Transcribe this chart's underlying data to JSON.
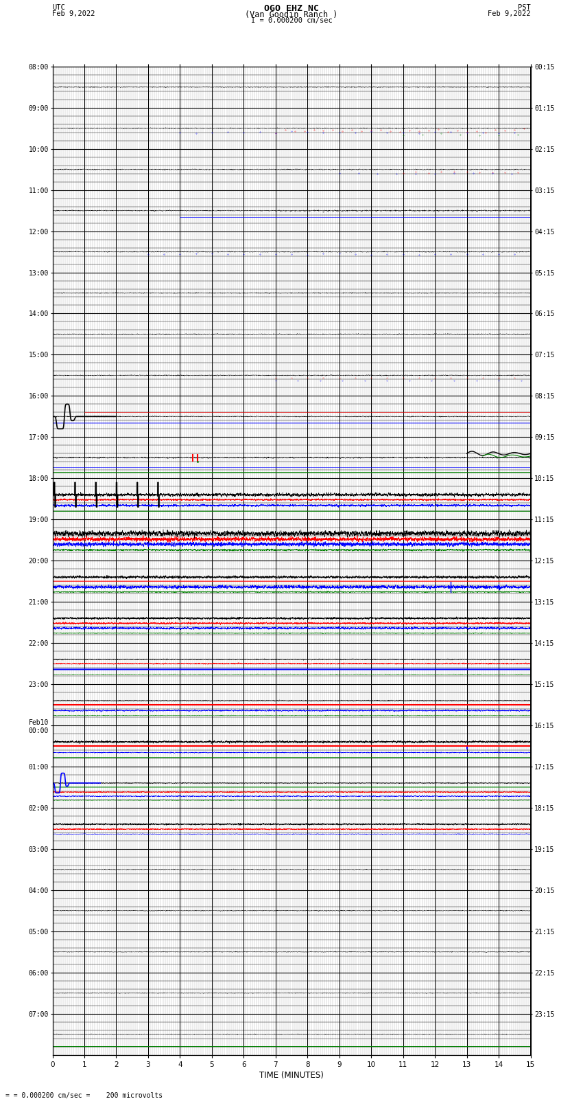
{
  "title_line1": "OGO EHZ NC",
  "title_line2": "(Van Goodin Ranch )",
  "title_line3": "I = 0.000200 cm/sec",
  "left_header_line1": "UTC",
  "left_header_line2": "Feb 9,2022",
  "right_header_line1": "PST",
  "right_header_line2": "Feb 9,2022",
  "xlabel": "TIME (MINUTES)",
  "footer": "= 0.000200 cm/sec =    200 microvolts",
  "xlim": [
    0,
    15
  ],
  "xticks": [
    0,
    1,
    2,
    3,
    4,
    5,
    6,
    7,
    8,
    9,
    10,
    11,
    12,
    13,
    14,
    15
  ],
  "num_rows": 24,
  "background_color": "#ffffff",
  "grid_color": "#000000",
  "utc_times": [
    "08:00",
    "09:00",
    "10:00",
    "11:00",
    "12:00",
    "13:00",
    "14:00",
    "15:00",
    "16:00",
    "17:00",
    "18:00",
    "19:00",
    "20:00",
    "21:00",
    "22:00",
    "23:00",
    "Feb10\n00:00",
    "01:00",
    "02:00",
    "03:00",
    "04:00",
    "05:00",
    "06:00",
    "07:00"
  ],
  "pst_times": [
    "00:15",
    "01:15",
    "02:15",
    "03:15",
    "04:15",
    "05:15",
    "06:15",
    "07:15",
    "08:15",
    "09:15",
    "10:15",
    "11:15",
    "12:15",
    "13:15",
    "14:15",
    "15:15",
    "16:15",
    "17:15",
    "18:15",
    "19:15",
    "20:15",
    "21:15",
    "22:15",
    "23:15"
  ]
}
